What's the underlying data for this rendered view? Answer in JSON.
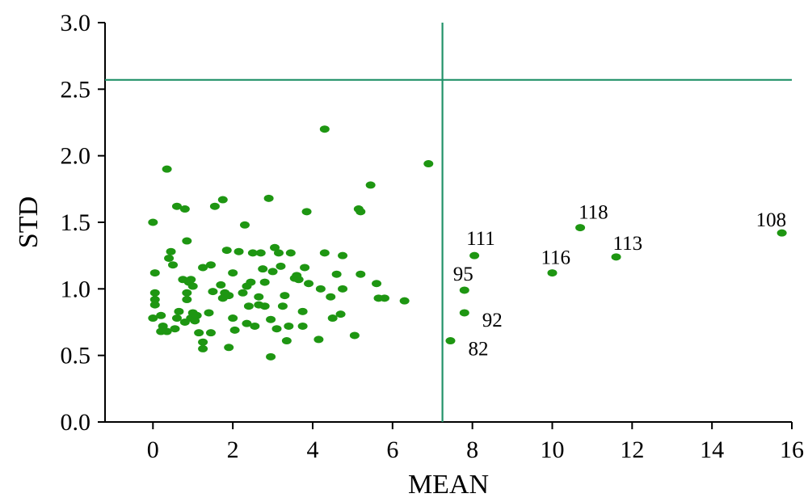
{
  "chart_data": {
    "type": "scatter",
    "xlabel": "MEAN",
    "ylabel": "STD",
    "xlim": [
      -1.2,
      16
    ],
    "ylim": [
      0,
      3.0
    ],
    "xticks": [
      0,
      2,
      4,
      6,
      8,
      10,
      12,
      14,
      16
    ],
    "yticks": [
      0.0,
      0.5,
      1.0,
      1.5,
      2.0,
      2.5,
      3.0
    ],
    "ytick_labels": [
      "0.0",
      "0.5",
      "1.0",
      "1.5",
      "2.0",
      "2.5",
      "3.0"
    ],
    "grid": false,
    "threshold_lines": {
      "x": 7.25,
      "y": 2.57
    },
    "colors": {
      "points": "#1e9612",
      "threshold": "#22926a",
      "axis": "#000000"
    },
    "points": [
      [
        0.0,
        1.5
      ],
      [
        0.05,
        1.12
      ],
      [
        0.05,
        0.97
      ],
      [
        0.05,
        0.92
      ],
      [
        0.0,
        0.78
      ],
      [
        0.05,
        0.88
      ],
      [
        0.2,
        0.8
      ],
      [
        0.25,
        0.72
      ],
      [
        0.2,
        0.68
      ],
      [
        0.35,
        0.68
      ],
      [
        0.4,
        1.23
      ],
      [
        0.5,
        1.18
      ],
      [
        0.45,
        1.28
      ],
      [
        0.55,
        0.7
      ],
      [
        0.6,
        0.78
      ],
      [
        0.65,
        0.83
      ],
      [
        0.6,
        1.62
      ],
      [
        0.75,
        1.07
      ],
      [
        0.8,
        0.75
      ],
      [
        0.85,
        0.92
      ],
      [
        0.85,
        0.97
      ],
      [
        0.9,
        1.05
      ],
      [
        0.95,
        0.78
      ],
      [
        1.0,
        0.82
      ],
      [
        1.05,
        0.76
      ],
      [
        1.1,
        0.8
      ],
      [
        1.15,
        0.67
      ],
      [
        0.95,
        1.07
      ],
      [
        0.85,
        1.36
      ],
      [
        0.8,
        1.6
      ],
      [
        0.35,
        1.9
      ],
      [
        1.0,
        1.02
      ],
      [
        1.25,
        0.6
      ],
      [
        1.25,
        0.55
      ],
      [
        1.25,
        1.16
      ],
      [
        1.4,
        0.82
      ],
      [
        1.45,
        0.67
      ],
      [
        1.45,
        1.18
      ],
      [
        1.5,
        0.98
      ],
      [
        1.55,
        1.62
      ],
      [
        1.7,
        1.03
      ],
      [
        1.75,
        0.93
      ],
      [
        1.75,
        1.67
      ],
      [
        1.8,
        0.97
      ],
      [
        1.85,
        1.29
      ],
      [
        1.9,
        0.95
      ],
      [
        1.9,
        0.56
      ],
      [
        2.0,
        1.12
      ],
      [
        2.0,
        0.78
      ],
      [
        2.05,
        0.69
      ],
      [
        2.15,
        1.28
      ],
      [
        2.25,
        0.97
      ],
      [
        2.3,
        1.48
      ],
      [
        2.35,
        0.74
      ],
      [
        2.35,
        1.02
      ],
      [
        2.4,
        0.87
      ],
      [
        2.45,
        1.05
      ],
      [
        2.5,
        1.27
      ],
      [
        2.55,
        0.72
      ],
      [
        2.65,
        0.94
      ],
      [
        2.65,
        0.88
      ],
      [
        2.7,
        1.27
      ],
      [
        2.75,
        1.15
      ],
      [
        2.8,
        0.87
      ],
      [
        2.8,
        1.05
      ],
      [
        2.9,
        1.68
      ],
      [
        2.95,
        0.77
      ],
      [
        2.95,
        0.49
      ],
      [
        3.0,
        1.13
      ],
      [
        3.05,
        1.31
      ],
      [
        3.1,
        0.7
      ],
      [
        3.15,
        1.27
      ],
      [
        3.2,
        1.17
      ],
      [
        3.25,
        0.87
      ],
      [
        3.3,
        0.95
      ],
      [
        3.35,
        0.61
      ],
      [
        3.4,
        0.72
      ],
      [
        3.45,
        1.27
      ],
      [
        3.55,
        1.08
      ],
      [
        3.6,
        1.1
      ],
      [
        3.65,
        1.07
      ],
      [
        3.75,
        0.83
      ],
      [
        3.75,
        0.72
      ],
      [
        3.8,
        1.16
      ],
      [
        3.85,
        1.58
      ],
      [
        3.9,
        1.04
      ],
      [
        4.15,
        0.62
      ],
      [
        4.2,
        1.0
      ],
      [
        4.3,
        1.27
      ],
      [
        4.3,
        2.2
      ],
      [
        4.45,
        0.94
      ],
      [
        4.5,
        0.78
      ],
      [
        4.6,
        1.11
      ],
      [
        4.7,
        0.81
      ],
      [
        4.75,
        1.25
      ],
      [
        4.75,
        1.0
      ],
      [
        5.05,
        0.65
      ],
      [
        5.15,
        1.6
      ],
      [
        5.2,
        1.58
      ],
      [
        5.2,
        1.11
      ],
      [
        5.45,
        1.78
      ],
      [
        5.6,
        1.04
      ],
      [
        5.65,
        0.93
      ],
      [
        5.8,
        0.93
      ],
      [
        6.3,
        0.91
      ],
      [
        6.9,
        1.94
      ],
      [
        7.45,
        0.61
      ],
      [
        7.8,
        0.82
      ],
      [
        7.8,
        0.99
      ],
      [
        8.05,
        1.25
      ],
      [
        10.0,
        1.12
      ],
      [
        10.7,
        1.46
      ],
      [
        11.6,
        1.24
      ],
      [
        15.75,
        1.42
      ]
    ],
    "annotations": [
      {
        "label": "82",
        "x": 7.45,
        "y": 0.61,
        "dx": 22,
        "dy": 18
      },
      {
        "label": "92",
        "x": 7.8,
        "y": 0.82,
        "dx": 22,
        "dy": 17
      },
      {
        "label": "95",
        "x": 7.8,
        "y": 0.99,
        "dx": -14,
        "dy": -12
      },
      {
        "label": "111",
        "x": 8.05,
        "y": 1.25,
        "dx": -10,
        "dy": -13
      },
      {
        "label": "116",
        "x": 10.0,
        "y": 1.12,
        "dx": -14,
        "dy": -11
      },
      {
        "label": "118",
        "x": 10.7,
        "y": 1.46,
        "dx": -2,
        "dy": -11
      },
      {
        "label": "113",
        "x": 11.6,
        "y": 1.24,
        "dx": -4,
        "dy": -9
      },
      {
        "label": "108",
        "x": 15.75,
        "y": 1.42,
        "dx": -32,
        "dy": -8
      }
    ]
  }
}
